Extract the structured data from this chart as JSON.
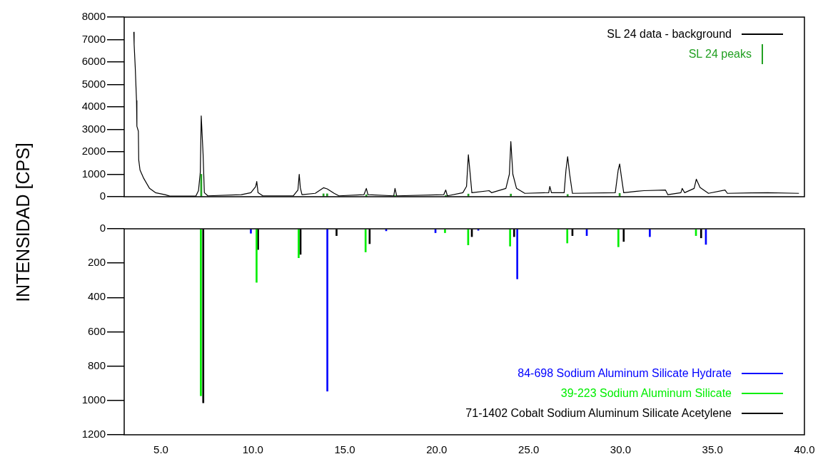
{
  "chart_data": [
    {
      "type": "line",
      "ylabel": "INTENSIDAD [CPS]",
      "xlim": [
        3,
        40
      ],
      "ylim": [
        0,
        8000
      ],
      "yticks": [
        0,
        1000,
        2000,
        3000,
        4000,
        5000,
        6000,
        7000,
        8000
      ],
      "tick_labels": "y",
      "legend": "top right",
      "series": [
        {
          "name": "SL 24 data - background",
          "color": "#000000",
          "x": [
            3.52,
            3.54,
            3.6,
            3.67,
            3.69,
            3.77,
            3.79,
            3.86,
            4.06,
            4.38,
            4.7,
            5.22,
            5.48,
            6.9,
            7.04,
            7.14,
            7.19,
            7.29,
            7.36,
            7.55,
            9.37,
            9.89,
            10.15,
            10.21,
            10.28,
            10.54,
            12.2,
            12.45,
            12.52,
            12.58,
            12.67,
            13.39,
            13.84,
            14.04,
            14.42,
            14.68,
            16.04,
            16.17,
            16.26,
            17.66,
            17.73,
            17.82,
            20.38,
            20.49,
            20.58,
            21.42,
            21.62,
            21.72,
            21.81,
            21.91,
            22.85,
            22.98,
            23.76,
            23.95,
            24.03,
            24.14,
            24.34,
            24.79,
            26.09,
            26.15,
            26.24,
            26.93,
            27.03,
            27.12,
            27.23,
            27.38,
            29.71,
            29.87,
            29.95,
            30.04,
            30.17,
            30.88,
            31.27,
            32.44,
            32.57,
            33.28,
            33.35,
            33.48,
            34.0,
            34.12,
            34.32,
            34.78,
            35.68,
            35.81,
            37.1,
            38.0,
            39.7
          ],
          "values": [
            7330,
            6790,
            5780,
            4280,
            3140,
            2920,
            1640,
            1190,
            820,
            370,
            180,
            90,
            30,
            30,
            270,
            1090,
            3600,
            1910,
            180,
            40,
            90,
            180,
            450,
            680,
            180,
            40,
            40,
            300,
            1000,
            400,
            90,
            150,
            400,
            350,
            150,
            40,
            90,
            370,
            90,
            40,
            370,
            40,
            90,
            300,
            40,
            180,
            460,
            1870,
            1090,
            180,
            270,
            180,
            370,
            1000,
            2460,
            1000,
            370,
            150,
            180,
            460,
            180,
            180,
            1190,
            1780,
            1000,
            150,
            180,
            1190,
            1460,
            910,
            180,
            240,
            270,
            300,
            90,
            180,
            370,
            180,
            370,
            780,
            410,
            150,
            300,
            150,
            170,
            180,
            150
          ]
        },
        {
          "name": "SL 24 peaks",
          "type": "bar",
          "color": "#22a022",
          "x": [
            7.19,
            13.84,
            14.04,
            16.17,
            17.73,
            20.49,
            21.72,
            24.03,
            27.12,
            29.95
          ],
          "values": [
            1000,
            130,
            130,
            90,
            60,
            60,
            120,
            120,
            100,
            150
          ]
        }
      ]
    },
    {
      "type": "bar",
      "xlim": [
        3,
        40
      ],
      "xticks": [
        {
          "value": 5,
          "label": "5.0"
        },
        {
          "value": 10,
          "label": "10.0"
        },
        {
          "value": 15,
          "label": "15.0"
        },
        {
          "value": 20,
          "label": "20.0"
        },
        {
          "value": 25,
          "label": "25.0"
        },
        {
          "value": 30,
          "label": "30.0"
        },
        {
          "value": 35,
          "label": "35.0"
        },
        {
          "value": 40,
          "label": "40.0"
        }
      ],
      "ylim": [
        1200,
        0
      ],
      "yticks": [
        0,
        200,
        400,
        600,
        800,
        1000,
        1200
      ],
      "legend": "bottom right",
      "series": [
        {
          "name": "84-698 Sodium Aluminum Silicate Hydrate",
          "color": "#0000ff",
          "x": [
            9.89,
            14.05,
            17.25,
            19.93,
            22.26,
            24.38,
            28.16,
            31.59,
            34.64
          ],
          "values": [
            26,
            946,
            12,
            23,
            9,
            292,
            40,
            46,
            91
          ]
        },
        {
          "name": "39-223 Sodium Aluminum Silicate",
          "color": "#00ee00",
          "x": [
            7.17,
            10.2,
            12.49,
            16.13,
            20.45,
            21.71,
            23.99,
            27.1,
            29.88,
            34.1
          ],
          "values": [
            973,
            312,
            169,
            135,
            23,
            94,
            101,
            83,
            105,
            40
          ]
        },
        {
          "name": "71-1402 Cobalt Sodium Aluminum Silicate Acetylene",
          "color": "#000000",
          "x": [
            7.3,
            10.28,
            12.59,
            14.55,
            16.35,
            21.91,
            24.21,
            27.38,
            30.17,
            34.38
          ],
          "values": [
            1014,
            121,
            149,
            40,
            87,
            46,
            46,
            40,
            74,
            53
          ]
        }
      ]
    }
  ]
}
